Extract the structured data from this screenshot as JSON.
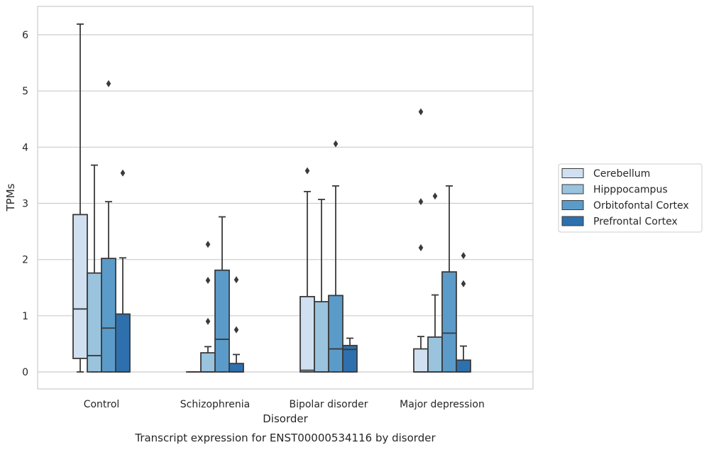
{
  "chart_data": {
    "type": "box",
    "title": "Transcript expression for ENST00000534116 by disorder",
    "xlabel": "Disorder",
    "ylabel": "TPMs",
    "ylim": [
      -0.3,
      6.5
    ],
    "yticks": [
      0,
      1,
      2,
      3,
      4,
      5,
      6
    ],
    "grid": true,
    "legend_position": "right",
    "categories": [
      "Control",
      "Schizophrenia",
      "Bipolar disorder",
      "Major depression"
    ],
    "series": [
      {
        "name": "Cerebellum",
        "color": "#d0e0f0",
        "boxes": [
          {
            "whislo": 0.0,
            "q1": 0.24,
            "med": 1.12,
            "q3": 2.8,
            "whishi": 6.19,
            "fliers": []
          },
          {
            "whislo": 0.0,
            "q1": 0.0,
            "med": 0.0,
            "q3": 0.0,
            "whishi": 0.0,
            "fliers": []
          },
          {
            "whislo": 0.0,
            "q1": 0.0,
            "med": 0.03,
            "q3": 1.34,
            "whishi": 3.21,
            "fliers": [
              3.58
            ]
          },
          {
            "whislo": 0.0,
            "q1": 0.0,
            "med": 0.0,
            "q3": 0.41,
            "whishi": 0.63,
            "fliers": [
              2.21,
              3.03,
              4.63
            ]
          }
        ]
      },
      {
        "name": "Hipppocampus",
        "color": "#9ac3de",
        "boxes": [
          {
            "whislo": 0.0,
            "q1": 0.0,
            "med": 0.29,
            "q3": 1.76,
            "whishi": 3.68,
            "fliers": []
          },
          {
            "whislo": 0.0,
            "q1": 0.0,
            "med": 0.0,
            "q3": 0.34,
            "whishi": 0.45,
            "fliers": [
              0.9,
              1.63,
              2.27
            ]
          },
          {
            "whislo": 0.0,
            "q1": 0.0,
            "med": 0.0,
            "q3": 1.25,
            "whishi": 3.07,
            "fliers": []
          },
          {
            "whislo": 0.0,
            "q1": 0.0,
            "med": 0.0,
            "q3": 0.62,
            "whishi": 1.37,
            "fliers": [
              3.13
            ]
          }
        ]
      },
      {
        "name": "Orbitofontal Cortex",
        "color": "#5b9bc9",
        "boxes": [
          {
            "whislo": 0.0,
            "q1": 0.0,
            "med": 0.78,
            "q3": 2.02,
            "whishi": 3.03,
            "fliers": [
              5.13
            ]
          },
          {
            "whislo": 0.0,
            "q1": 0.0,
            "med": 0.58,
            "q3": 1.81,
            "whishi": 2.76,
            "fliers": []
          },
          {
            "whislo": 0.0,
            "q1": 0.0,
            "med": 0.41,
            "q3": 1.36,
            "whishi": 3.31,
            "fliers": [
              4.06
            ]
          },
          {
            "whislo": 0.0,
            "q1": 0.0,
            "med": 0.69,
            "q3": 1.78,
            "whishi": 3.31,
            "fliers": []
          }
        ]
      },
      {
        "name": "Prefrontal Cortex",
        "color": "#2e70ad",
        "boxes": [
          {
            "whislo": 0.0,
            "q1": 0.0,
            "med": 0.0,
            "q3": 1.03,
            "whishi": 2.03,
            "fliers": [
              3.54
            ]
          },
          {
            "whislo": 0.0,
            "q1": 0.0,
            "med": 0.0,
            "q3": 0.15,
            "whishi": 0.31,
            "fliers": [
              0.75,
              1.64
            ]
          },
          {
            "whislo": 0.0,
            "q1": 0.0,
            "med": 0.4,
            "q3": 0.47,
            "whishi": 0.6,
            "fliers": []
          },
          {
            "whislo": 0.0,
            "q1": 0.0,
            "med": 0.0,
            "q3": 0.21,
            "whishi": 0.46,
            "fliers": [
              1.57,
              2.07
            ]
          }
        ]
      }
    ]
  }
}
